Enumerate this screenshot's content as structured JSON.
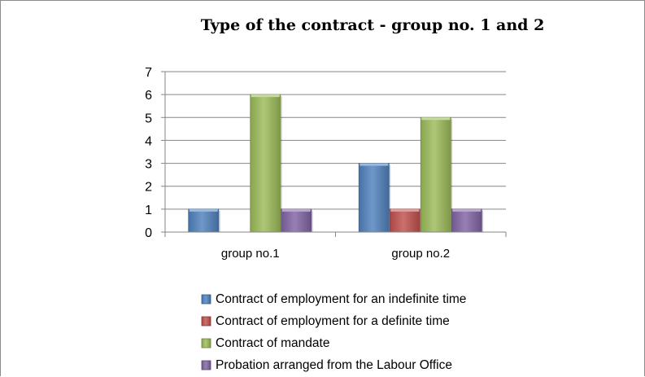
{
  "chart_data": {
    "type": "bar",
    "title": "Type of the contract - group no. 1 and 2",
    "xlabel": "",
    "ylabel": "",
    "categories": [
      "group no.1",
      "group no.2"
    ],
    "ylim": [
      0,
      7
    ],
    "yticks": [
      0,
      1,
      2,
      3,
      4,
      5,
      6,
      7
    ],
    "grid": true,
    "legend_position": "bottom",
    "series": [
      {
        "name": "Contract of employment for an indefinite time",
        "values": [
          1,
          3
        ],
        "color": "#4f81bd"
      },
      {
        "name": "Contract of employment for a definite time",
        "values": [
          0,
          1
        ],
        "color": "#c0504d"
      },
      {
        "name": "Contract of mandate",
        "values": [
          6,
          5
        ],
        "color": "#9bbb59"
      },
      {
        "name": "Probation arranged from the Labour Office",
        "values": [
          1,
          1
        ],
        "color": "#8064a2"
      }
    ]
  }
}
